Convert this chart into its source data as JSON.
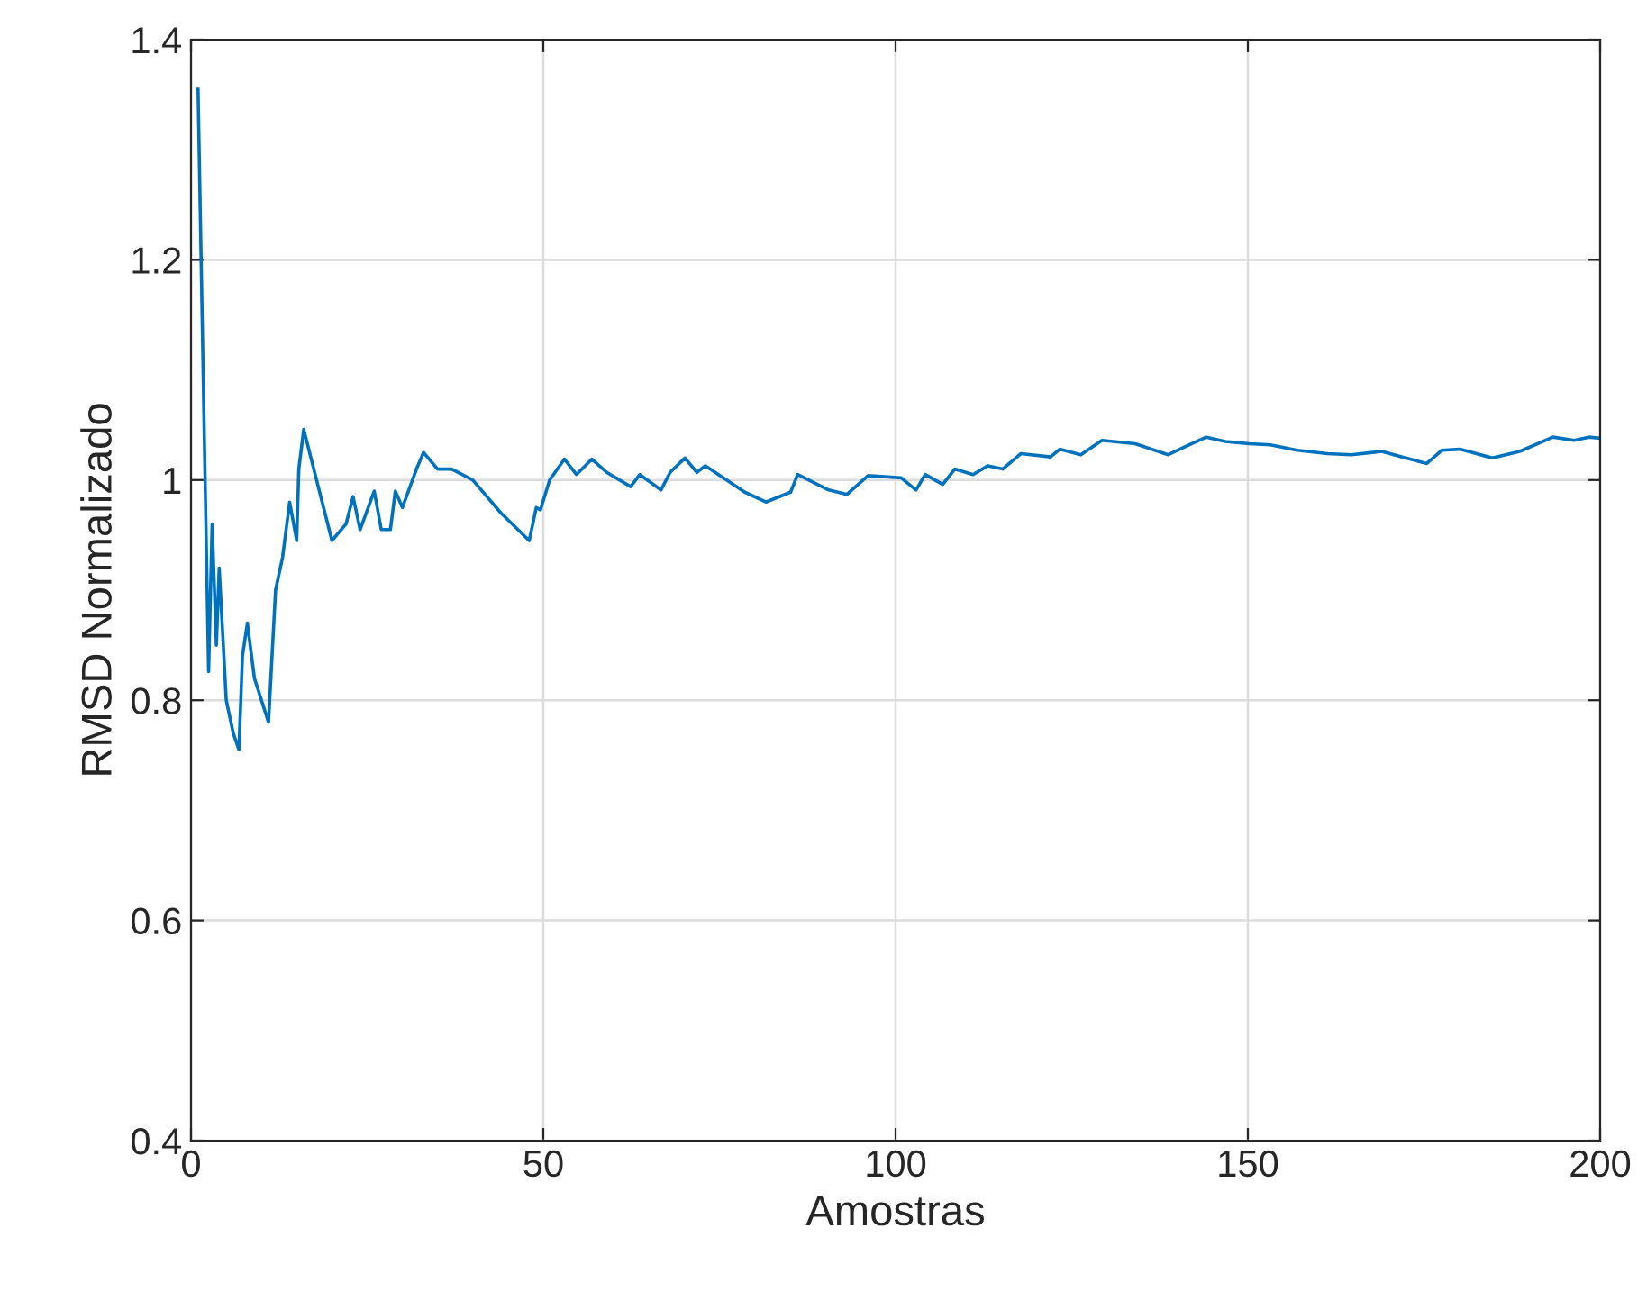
{
  "chart_data": {
    "type": "line",
    "xlabel": "Amostras",
    "ylabel": "RMSD Normalizado",
    "xlim": [
      0,
      200
    ],
    "xticks": [
      0,
      50,
      100,
      150,
      200
    ],
    "ylim": [
      0.4,
      1.4
    ],
    "yticks": [
      0.4,
      0.6,
      0.8,
      1,
      1.2,
      1.4
    ],
    "grid": true,
    "legend": false,
    "series": [
      {
        "color": "#0072bd",
        "x": [
          1,
          2,
          2.5,
          3,
          3.6,
          4,
          5,
          6,
          6.8,
          7.3,
          8,
          9,
          10,
          11,
          12,
          13,
          14,
          15,
          15.3,
          16,
          20,
          22,
          23,
          24,
          26,
          27,
          28.3,
          29,
          30,
          32,
          33,
          35,
          37,
          40,
          44,
          48,
          49,
          49.6,
          50.9,
          53,
          54.7,
          56.9,
          59,
          62.4,
          63.7,
          66.7,
          68,
          70.1,
          71.8,
          73,
          78.6,
          81.6,
          85.1,
          86.1,
          90.5,
          93.1,
          96.1,
          100.8,
          102.9,
          104.2,
          106.7,
          108.4,
          111,
          113.1,
          115.2,
          117.8,
          122,
          123.3,
          126.3,
          129.3,
          134,
          138.7,
          141.7,
          144.1,
          146.8,
          150.2,
          153.2,
          157,
          161.3,
          164.7,
          169,
          172.4,
          175.4,
          177.5,
          180.1,
          184.7,
          188.6,
          193.3,
          196.3,
          198.4,
          200
        ],
        "values": [
          1.355,
          1.0,
          0.826,
          0.96,
          0.85,
          0.92,
          0.8,
          0.77,
          0.755,
          0.84,
          0.87,
          0.82,
          0.8,
          0.78,
          0.9,
          0.93,
          0.98,
          0.945,
          1.01,
          1.046,
          0.945,
          0.96,
          0.985,
          0.955,
          0.99,
          0.955,
          0.955,
          0.99,
          0.975,
          1.01,
          1.025,
          1.01,
          1.01,
          1.0,
          0.97,
          0.945,
          0.975,
          0.973,
          1.0,
          1.019,
          1.005,
          1.019,
          1.007,
          0.994,
          1.005,
          0.991,
          1.007,
          1.02,
          1.007,
          1.013,
          0.989,
          0.98,
          0.989,
          1.005,
          0.991,
          0.987,
          1.004,
          1.002,
          0.991,
          1.005,
          0.996,
          1.01,
          1.005,
          1.013,
          1.01,
          1.024,
          1.021,
          1.028,
          1.023,
          1.036,
          1.033,
          1.023,
          1.032,
          1.039,
          1.035,
          1.033,
          1.032,
          1.027,
          1.024,
          1.023,
          1.026,
          1.02,
          1.015,
          1.027,
          1.028,
          1.02,
          1.026,
          1.039,
          1.036,
          1.039,
          1.038
        ]
      }
    ]
  }
}
